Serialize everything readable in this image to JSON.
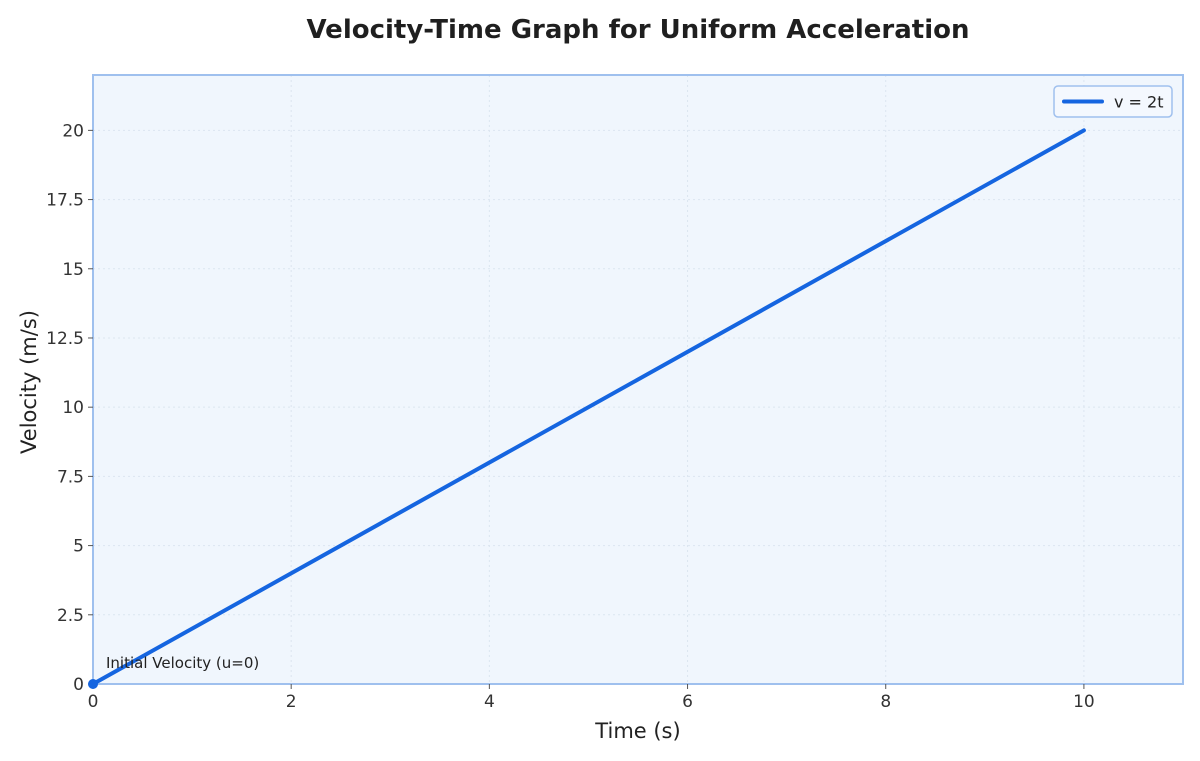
{
  "chart_data": {
    "type": "line",
    "title": "Velocity-Time Graph for Uniform Acceleration",
    "xlabel": "Time (s)",
    "ylabel": "Velocity (m/s)",
    "xlim": [
      0,
      11
    ],
    "ylim": [
      0,
      22
    ],
    "xticks": [
      0,
      2,
      4,
      6,
      8,
      10
    ],
    "xtick_labels": [
      "0",
      "2",
      "4",
      "6",
      "8",
      "10"
    ],
    "yticks": [
      0,
      2.5,
      5,
      7.5,
      10,
      12.5,
      15,
      17.5,
      20
    ],
    "ytick_labels": [
      "0",
      "2.5",
      "5",
      "7.5",
      "10",
      "12.5",
      "15",
      "17.5",
      "20"
    ],
    "grid": true,
    "legend_position": "top-right",
    "series": [
      {
        "name": "v = 2t",
        "x": [
          0,
          10
        ],
        "y": [
          0,
          20
        ],
        "color": "#1565e0"
      }
    ],
    "annotations": [
      {
        "text": "Initial Velocity (u=0)",
        "x": 0,
        "y": 0
      }
    ],
    "colors": {
      "plot_bg": "#f0f6fd",
      "frame": "#9fc0ee",
      "grid": "#dbe5f0",
      "line": "#1565e0"
    }
  }
}
